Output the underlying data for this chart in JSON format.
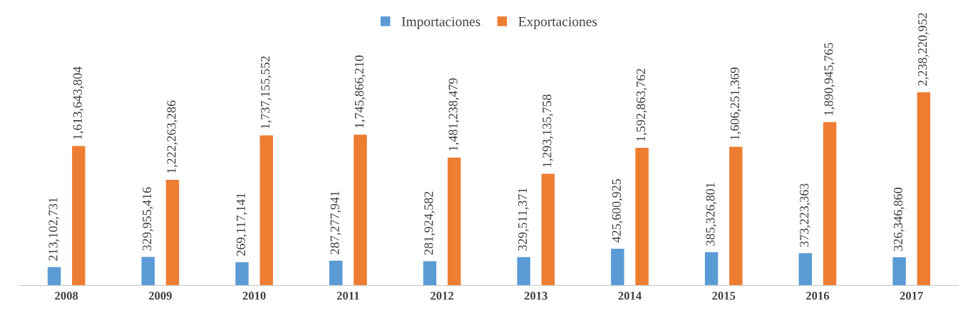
{
  "chart_data": {
    "type": "bar",
    "categories": [
      "2008",
      "2009",
      "2010",
      "2011",
      "2012",
      "2013",
      "2014",
      "2015",
      "2016",
      "2017"
    ],
    "series": [
      {
        "name": "Importaciones",
        "color": "#5b9bd5",
        "values": [
          213102731,
          329955416,
          269117141,
          287277941,
          281924582,
          329511371,
          425600925,
          385326801,
          373223363,
          326346860
        ],
        "value_labels": [
          "213,102,731",
          "329,955,416",
          "269,117,141",
          "287,277,941",
          "281,924,582",
          "329,511,371",
          "425,600,925",
          "385,326,801",
          "373,223,363",
          "326,346,860"
        ]
      },
      {
        "name": "Exportaciones",
        "color": "#ed7d31",
        "values": [
          1613643804,
          1222263286,
          1737155552,
          1745866210,
          1481238479,
          1293135758,
          1592863762,
          1606251369,
          1890945765,
          2238220952
        ],
        "value_labels": [
          "1,613,643,804",
          "1,222,263,286",
          "1,737,155,552",
          "1,745,866,210",
          "1,481,238,479",
          "1,293,135,758",
          "1,592,863,762",
          "1,606,251,369",
          "1,890,945,765",
          "2,238,220,952"
        ]
      }
    ],
    "legend": "top",
    "grid": false
  }
}
